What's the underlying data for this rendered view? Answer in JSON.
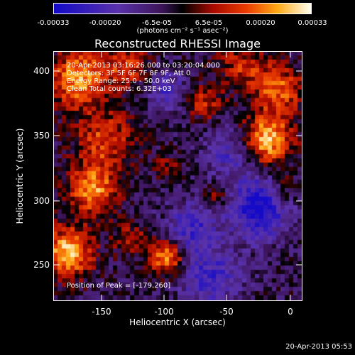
{
  "colorbar": {
    "tick_labels": [
      "-0.00033",
      "-0.00020",
      "-6.5e-05",
      "6.5e-05",
      "0.00020",
      "0.00033"
    ],
    "unit_label": "(photons cm⁻² s⁻¹ asec⁻²)"
  },
  "image": {
    "title": "Reconstructed RHESSI Image",
    "xlabel": "Heliocentric X (arcsec)",
    "ylabel": "Heliocentric Y (arcsec)",
    "x_ticks": [
      "-150",
      "-100",
      "-50",
      "0"
    ],
    "y_ticks": [
      "400",
      "350",
      "300",
      "250"
    ],
    "annotations": {
      "time": "20-Apr-2013 03:16:26.000 to 03:20:04.000",
      "detectors": "Detectors: 3F 5F 6F 7F 8F 9F, Att 0",
      "energy": "Energy Range: 25.0 - 50.0 keV",
      "clean": "Clean     Total counts: 6.32E+03",
      "peak": "Position of Peak = [-179,260]"
    },
    "footer": "20-Apr-2013 05:53"
  }
}
